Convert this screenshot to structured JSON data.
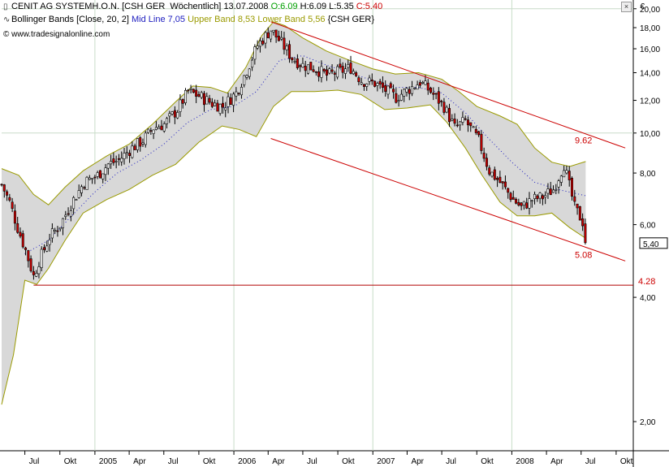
{
  "header": {
    "line1": {
      "name": "CENIT AG SYSTEMH.O.N.",
      "symbol": "[CSH GER  Wöchentlich]",
      "date": "13.07.2008",
      "open_label": "O:6.09",
      "high_label": "H:6.09",
      "low_label": "L:5.35",
      "close_label": "C:5.40"
    },
    "line2": {
      "indicator": "Bollinger Bands [Close, 20, 2]",
      "mid": "Mid Line 7,05",
      "upper": "Upper Band 8,53",
      "lower": "Lower Band 5,56",
      "symbol": "{CSH GER}"
    },
    "line3": {
      "copyright": "© www.tradesignalonline.com"
    }
  },
  "currency_symbol": "€",
  "colors": {
    "up_close": "#00a000",
    "down_close": "#cc0000",
    "mid_line": "#2020c0",
    "upper_band": "#9a9a00",
    "channel": "#cc0000",
    "candle_up": "#ffffff",
    "candle_down": "#cc0000",
    "band_fill": "#d8d8d8",
    "grid": "#c8dcc8",
    "support": "#b00000"
  },
  "chart_data": {
    "type": "candlestick",
    "y_scale": "log",
    "ylim": [
      1.7,
      21
    ],
    "y_ticks": [
      2,
      4,
      6,
      8,
      10,
      12,
      14,
      16,
      18,
      20
    ],
    "y_tick_labels": [
      "2,00",
      "4,00",
      "6,00",
      "8,00",
      "10,00",
      "12,00",
      "14,00",
      "16,00",
      "18,00",
      "20,00"
    ],
    "x_range": [
      "2004-05-01",
      "2008-11-15"
    ],
    "x_tick_labels": [
      {
        "date": "2004-07-01",
        "label": "Jul"
      },
      {
        "date": "2004-10-01",
        "label": "Okt"
      },
      {
        "date": "2005-01-01",
        "label": "2005"
      },
      {
        "date": "2005-04-01",
        "label": "Apr"
      },
      {
        "date": "2005-07-01",
        "label": "Jul"
      },
      {
        "date": "2005-10-01",
        "label": "Okt"
      },
      {
        "date": "2006-01-01",
        "label": "2006"
      },
      {
        "date": "2006-04-01",
        "label": "Apr"
      },
      {
        "date": "2006-07-01",
        "label": "Jul"
      },
      {
        "date": "2006-10-01",
        "label": "Okt"
      },
      {
        "date": "2007-01-01",
        "label": "2007"
      },
      {
        "date": "2007-04-01",
        "label": "Apr"
      },
      {
        "date": "2007-07-01",
        "label": "Jul"
      },
      {
        "date": "2007-10-01",
        "label": "Okt"
      },
      {
        "date": "2008-01-01",
        "label": "2008"
      },
      {
        "date": "2008-04-01",
        "label": "Apr"
      },
      {
        "date": "2008-07-01",
        "label": "Jul"
      },
      {
        "date": "2008-10-01",
        "label": "Okt"
      }
    ],
    "vertical_grid_dates": [
      "2005-01-01",
      "2006-01-01",
      "2007-01-01",
      "2008-01-01"
    ],
    "horizontal_grid_values": [
      10,
      20
    ],
    "close_path": [
      [
        "2004-05-01",
        7.5
      ],
      [
        "2004-05-22",
        6.8
      ],
      [
        "2004-06-12",
        5.9
      ],
      [
        "2004-07-03",
        5.2
      ],
      [
        "2004-07-24",
        4.5
      ],
      [
        "2004-08-07",
        4.9
      ],
      [
        "2004-09-04",
        5.6
      ],
      [
        "2004-10-02",
        6.0
      ],
      [
        "2004-11-06",
        6.9
      ],
      [
        "2004-12-04",
        7.6
      ],
      [
        "2005-01-08",
        7.9
      ],
      [
        "2005-02-05",
        8.4
      ],
      [
        "2005-03-05",
        8.6
      ],
      [
        "2005-04-02",
        9.1
      ],
      [
        "2005-05-07",
        9.6
      ],
      [
        "2005-06-04",
        10.3
      ],
      [
        "2005-07-02",
        10.5
      ],
      [
        "2005-08-06",
        11.4
      ],
      [
        "2005-09-03",
        12.6
      ],
      [
        "2005-10-01",
        12.3
      ],
      [
        "2005-11-05",
        11.8
      ],
      [
        "2005-12-03",
        11.6
      ],
      [
        "2006-01-07",
        12.5
      ],
      [
        "2006-02-04",
        14.2
      ],
      [
        "2006-03-04",
        16.3
      ],
      [
        "2006-04-08",
        17.8
      ],
      [
        "2006-05-06",
        16.5
      ],
      [
        "2006-06-03",
        15.2
      ],
      [
        "2006-07-01",
        14.6
      ],
      [
        "2006-08-05",
        14.3
      ],
      [
        "2006-09-02",
        13.8
      ],
      [
        "2006-10-07",
        14.1
      ],
      [
        "2006-11-04",
        14.4
      ],
      [
        "2006-12-02",
        13.4
      ],
      [
        "2007-01-06",
        13.2
      ],
      [
        "2007-02-03",
        12.7
      ],
      [
        "2007-03-03",
        12.2
      ],
      [
        "2007-04-07",
        12.8
      ],
      [
        "2007-05-05",
        13.3
      ],
      [
        "2007-06-02",
        12.6
      ],
      [
        "2007-07-07",
        11.6
      ],
      [
        "2007-08-04",
        10.3
      ],
      [
        "2007-09-01",
        10.7
      ],
      [
        "2007-10-06",
        9.6
      ],
      [
        "2007-11-03",
        8.1
      ],
      [
        "2007-12-01",
        7.6
      ],
      [
        "2008-01-05",
        6.9
      ],
      [
        "2008-01-26",
        6.6
      ],
      [
        "2008-02-23",
        6.9
      ],
      [
        "2008-03-22",
        7.0
      ],
      [
        "2008-04-19",
        7.3
      ],
      [
        "2008-05-17",
        8.4
      ],
      [
        "2008-06-14",
        6.6
      ],
      [
        "2008-07-05",
        6.1
      ],
      [
        "2008-07-13",
        5.4
      ]
    ],
    "upper_band_path": [
      [
        "2004-05-01",
        8.2
      ],
      [
        "2004-06-15",
        7.9
      ],
      [
        "2004-07-24",
        7.1
      ],
      [
        "2004-09-01",
        6.7
      ],
      [
        "2004-10-15",
        7.4
      ],
      [
        "2004-12-01",
        8.1
      ],
      [
        "2005-02-01",
        8.8
      ],
      [
        "2005-04-01",
        9.4
      ],
      [
        "2005-06-01",
        10.5
      ],
      [
        "2005-08-01",
        11.9
      ],
      [
        "2005-09-15",
        13.0
      ],
      [
        "2005-11-01",
        12.9
      ],
      [
        "2005-12-15",
        12.5
      ],
      [
        "2006-02-01",
        14.4
      ],
      [
        "2006-03-15",
        17.2
      ],
      [
        "2006-04-15",
        18.6
      ],
      [
        "2006-05-15",
        18.2
      ],
      [
        "2006-07-01",
        17.0
      ],
      [
        "2006-09-01",
        15.8
      ],
      [
        "2006-11-01",
        15.0
      ],
      [
        "2007-01-01",
        14.3
      ],
      [
        "2007-03-01",
        13.9
      ],
      [
        "2007-05-01",
        14.0
      ],
      [
        "2007-07-01",
        13.5
      ],
      [
        "2007-08-15",
        12.6
      ],
      [
        "2007-10-01",
        11.6
      ],
      [
        "2007-12-01",
        11.0
      ],
      [
        "2008-01-15",
        10.5
      ],
      [
        "2008-03-01",
        9.2
      ],
      [
        "2008-04-15",
        8.5
      ],
      [
        "2008-06-01",
        8.3
      ],
      [
        "2008-07-13",
        8.53
      ]
    ],
    "lower_band_path": [
      [
        "2004-05-01",
        2.2
      ],
      [
        "2004-06-01",
        2.9
      ],
      [
        "2004-07-01",
        4.4
      ],
      [
        "2004-08-01",
        4.3
      ],
      [
        "2004-09-01",
        4.7
      ],
      [
        "2004-10-15",
        5.5
      ],
      [
        "2004-12-01",
        6.4
      ],
      [
        "2005-02-01",
        6.9
      ],
      [
        "2005-04-01",
        7.3
      ],
      [
        "2005-06-01",
        7.9
      ],
      [
        "2005-08-01",
        8.4
      ],
      [
        "2005-10-01",
        9.5
      ],
      [
        "2005-12-01",
        10.4
      ],
      [
        "2006-01-15",
        10.2
      ],
      [
        "2006-03-01",
        9.8
      ],
      [
        "2006-04-15",
        11.6
      ],
      [
        "2006-06-01",
        12.6
      ],
      [
        "2006-08-01",
        12.6
      ],
      [
        "2006-10-01",
        12.7
      ],
      [
        "2006-12-01",
        12.4
      ],
      [
        "2007-02-01",
        11.4
      ],
      [
        "2007-04-01",
        11.5
      ],
      [
        "2007-06-01",
        11.7
      ],
      [
        "2007-07-15",
        10.6
      ],
      [
        "2007-09-01",
        9.2
      ],
      [
        "2007-10-15",
        7.9
      ],
      [
        "2007-12-01",
        6.8
      ],
      [
        "2008-01-15",
        6.3
      ],
      [
        "2008-03-01",
        6.3
      ],
      [
        "2008-04-15",
        6.4
      ],
      [
        "2008-06-01",
        5.9
      ],
      [
        "2008-07-13",
        5.56
      ]
    ],
    "mid_line_path": [
      [
        "2004-07-01",
        5.1
      ],
      [
        "2004-09-01",
        5.5
      ],
      [
        "2004-11-01",
        6.3
      ],
      [
        "2005-01-01",
        7.2
      ],
      [
        "2005-03-01",
        8.0
      ],
      [
        "2005-05-01",
        8.6
      ],
      [
        "2005-07-01",
        9.4
      ],
      [
        "2005-09-01",
        10.6
      ],
      [
        "2005-11-01",
        11.4
      ],
      [
        "2006-01-01",
        11.6
      ],
      [
        "2006-03-01",
        12.6
      ],
      [
        "2006-05-01",
        15.0
      ],
      [
        "2006-07-01",
        15.4
      ],
      [
        "2006-09-01",
        14.6
      ],
      [
        "2006-11-01",
        14.0
      ],
      [
        "2007-01-01",
        13.4
      ],
      [
        "2007-03-01",
        12.9
      ],
      [
        "2007-05-01",
        12.9
      ],
      [
        "2007-07-01",
        12.5
      ],
      [
        "2007-09-01",
        11.2
      ],
      [
        "2007-11-01",
        9.7
      ],
      [
        "2008-01-01",
        8.5
      ],
      [
        "2008-03-01",
        7.6
      ],
      [
        "2008-05-01",
        7.3
      ],
      [
        "2008-07-13",
        7.05
      ]
    ],
    "upper_channel_line": {
      "from": [
        "2006-04-08",
        18.6
      ],
      "to": [
        "2008-10-25",
        9.2
      ]
    },
    "lower_channel_line": {
      "from": [
        "2006-04-08",
        9.7
      ],
      "to": [
        "2008-10-25",
        4.9
      ]
    },
    "support_line_value": 4.28,
    "price_labels": [
      {
        "text": "9.62",
        "value": 9.62,
        "color": "#cc0000"
      },
      {
        "text": "5.08",
        "value": 5.08,
        "color": "#cc0000"
      },
      {
        "text": "4.28",
        "value": 4.28,
        "color": "#cc0000"
      }
    ],
    "last_price_label": "5,40",
    "last_price_value": 5.4,
    "candle_interval_days": 7
  }
}
